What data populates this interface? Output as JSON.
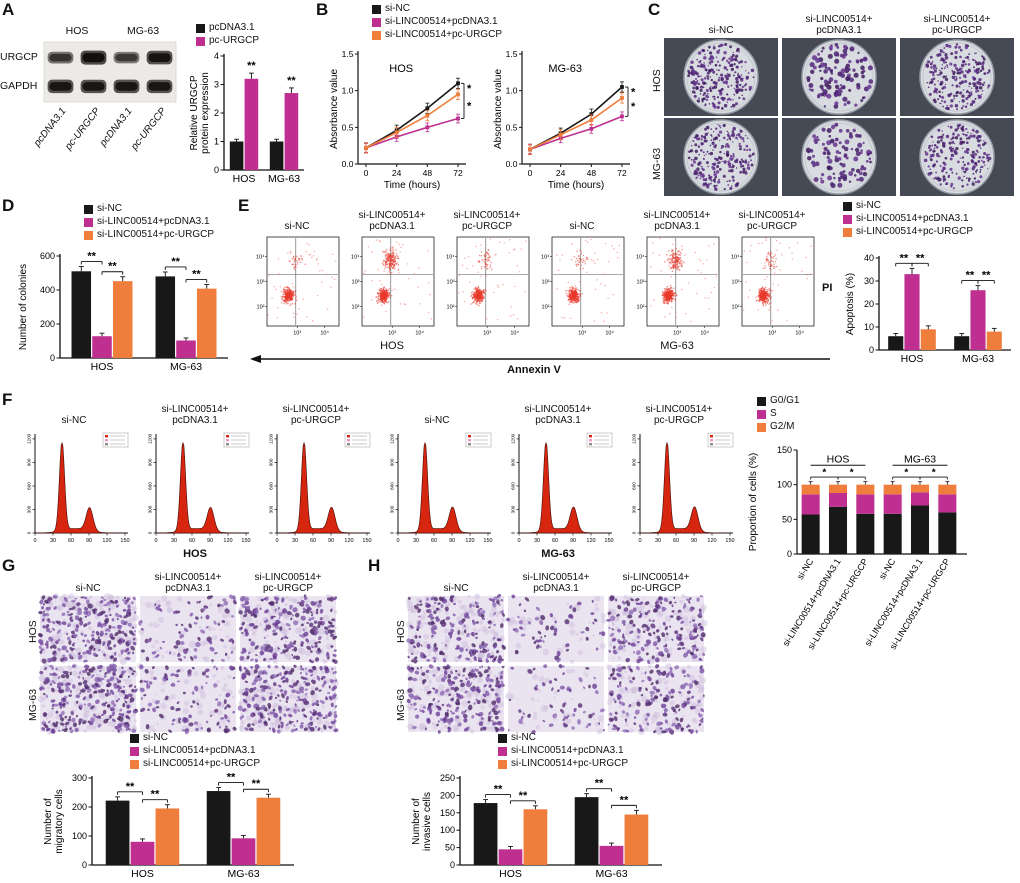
{
  "colors": {
    "black": "#181818",
    "magenta": "#bf2f90",
    "orange": "#ef7d3b"
  },
  "panelA": {
    "label": "A",
    "celllines": [
      "HOS",
      "MG-63"
    ],
    "rows": [
      "URGCP",
      "GAPDH"
    ],
    "lanes": [
      "pcDNA3.1",
      "pc-URGCP",
      "pcDNA3.1",
      "pc-URGCP"
    ],
    "blot": {
      "type": "blot",
      "rows": [
        [
          0.55,
          1.0,
          0.5,
          0.92
        ],
        [
          0.9,
          0.88,
          0.9,
          0.88
        ]
      ]
    },
    "legend": [
      {
        "label": "pcDNA3.1",
        "color": "black"
      },
      {
        "label": "pc-URGCP",
        "color": "magenta"
      }
    ],
    "chart": {
      "type": "bar",
      "ylabel": "Relative URGCP\nprotein expression",
      "categories": [
        "HOS",
        "MG-63"
      ],
      "ylim": [
        0,
        4
      ],
      "yticks": [
        0,
        1,
        2,
        3,
        4
      ],
      "series": [
        {
          "name": "pcDNA3.1",
          "color": "black",
          "values": [
            1.0,
            1.0
          ],
          "err": [
            0.08,
            0.08
          ]
        },
        {
          "name": "pc-URGCP",
          "color": "magenta",
          "values": [
            3.2,
            2.7
          ],
          "err": [
            0.2,
            0.18
          ]
        }
      ],
      "sigs": [
        {
          "cat": 0,
          "s": 1,
          "text": "**"
        },
        {
          "cat": 1,
          "s": 1,
          "text": "**"
        }
      ]
    }
  },
  "panelB": {
    "label": "B",
    "legend": [
      {
        "label": "si-NC",
        "color": "black"
      },
      {
        "label": "si-LINC00514+pcDNA3.1",
        "color": "magenta"
      },
      {
        "label": "si-LINC00514+pc-URGCP",
        "color": "orange"
      }
    ],
    "charts": [
      {
        "type": "line",
        "title": "HOS",
        "xlabel": "Time (hours)",
        "ylabel": "Absorbance value",
        "x": [
          0,
          24,
          48,
          72
        ],
        "ylim": [
          0,
          1.5
        ],
        "yticks": [
          "0.0",
          "0.5",
          "1.0",
          "1.5"
        ],
        "series": [
          {
            "name": "si-NC",
            "color": "black",
            "values": [
              0.22,
              0.46,
              0.76,
              1.1
            ],
            "err": 0.07
          },
          {
            "name": "si-LINC00514+pcDNA3.1",
            "color": "magenta",
            "values": [
              0.22,
              0.37,
              0.5,
              0.62
            ],
            "err": 0.06
          },
          {
            "name": "si-LINC00514+pc-URGCP",
            "color": "orange",
            "values": [
              0.22,
              0.43,
              0.66,
              0.95
            ],
            "err": 0.07
          }
        ],
        "sig": [
          "*",
          "*"
        ]
      },
      {
        "type": "line",
        "title": "MG-63",
        "xlabel": "Time (hours)",
        "ylabel": "Absorbance value",
        "x": [
          0,
          24,
          48,
          72
        ],
        "ylim": [
          0,
          1.5
        ],
        "yticks": [
          "0.0",
          "0.5",
          "1.0",
          "1.5"
        ],
        "series": [
          {
            "name": "si-NC",
            "color": "black",
            "values": [
              0.2,
              0.42,
              0.68,
              1.05
            ],
            "err": 0.07
          },
          {
            "name": "si-LINC00514+pcDNA3.1",
            "color": "magenta",
            "values": [
              0.2,
              0.35,
              0.48,
              0.65
            ],
            "err": 0.06
          },
          {
            "name": "si-LINC00514+pc-URGCP",
            "color": "orange",
            "values": [
              0.2,
              0.4,
              0.6,
              0.9
            ],
            "err": 0.07
          }
        ],
        "sig": [
          "*",
          "*"
        ]
      }
    ]
  },
  "panelC": {
    "label": "C",
    "cols": [
      "si-NC",
      "si-LINC00514+\npcDNA3.1",
      "si-LINC00514+\npc-URGCP"
    ],
    "rows": [
      "HOS",
      "MG-63"
    ],
    "images": [
      {
        "type": "dish",
        "density": 260,
        "seed": 1
      },
      {
        "type": "dish",
        "density": 115,
        "seed": 2
      },
      {
        "type": "dish",
        "density": 235,
        "seed": 3
      },
      {
        "type": "dish",
        "density": 245,
        "seed": 4
      },
      {
        "type": "dish",
        "density": 100,
        "seed": 5
      },
      {
        "type": "dish",
        "density": 215,
        "seed": 6
      }
    ]
  },
  "panelD": {
    "label": "D",
    "legend": [
      {
        "label": "si-NC",
        "color": "black"
      },
      {
        "label": "si-LINC00514+pcDNA3.1",
        "color": "magenta"
      },
      {
        "label": "si-LINC00514+pc-URGCP",
        "color": "orange"
      }
    ],
    "chart": {
      "type": "bar",
      "ylabel": "Number of colonies",
      "categories": [
        "HOS",
        "MG-63"
      ],
      "ylim": [
        0,
        600
      ],
      "yticks": [
        0,
        200,
        400,
        600
      ],
      "series": [
        {
          "name": "si-NC",
          "color": "black",
          "values": [
            510,
            480
          ],
          "err": [
            28,
            26
          ]
        },
        {
          "name": "si-LINC00514+pcDNA3.1",
          "color": "magenta",
          "values": [
            128,
            103
          ],
          "err": [
            18,
            15
          ]
        },
        {
          "name": "si-LINC00514+pc-URGCP",
          "color": "orange",
          "values": [
            452,
            408
          ],
          "err": [
            26,
            24
          ]
        }
      ],
      "sigs": [
        {
          "cat": 0,
          "s1": 0,
          "s2": 1,
          "text": "**"
        },
        {
          "cat": 0,
          "s1": 1,
          "s2": 2,
          "text": "**"
        },
        {
          "cat": 1,
          "s1": 0,
          "s2": 1,
          "text": "**"
        },
        {
          "cat": 1,
          "s1": 1,
          "s2": 2,
          "text": "**"
        }
      ]
    }
  },
  "panelE": {
    "label": "E",
    "titles": [
      "si-NC",
      "si-LINC00514+\npcDNA3.1",
      "si-LINC00514+\npc-URGCP",
      "si-NC",
      "si-LINC00514+\npcDNA3.1",
      "si-LINC00514+\npc-URGCP"
    ],
    "flow_yticks": [
      "10²",
      "10³",
      "10⁴"
    ],
    "flow_xticks": [
      "10³",
      "10⁴"
    ],
    "plots": [
      {
        "type": "flow",
        "apop": 0.06,
        "seed": 11
      },
      {
        "type": "flow",
        "apop": 0.33,
        "seed": 12
      },
      {
        "type": "flow",
        "apop": 0.09,
        "seed": 13
      },
      {
        "type": "flow",
        "apop": 0.06,
        "seed": 14
      },
      {
        "type": "flow",
        "apop": 0.26,
        "seed": 15
      },
      {
        "type": "flow",
        "apop": 0.08,
        "seed": 16
      }
    ],
    "yaxis": "PI",
    "xaxis": "Annexin V",
    "groups": [
      "HOS",
      "MG-63"
    ],
    "legend": [
      {
        "label": "si-NC",
        "color": "black"
      },
      {
        "label": "si-LINC00514+pcDNA3.1",
        "color": "magenta"
      },
      {
        "label": "si-LINC00514+pc-URGCP",
        "color": "orange"
      }
    ],
    "chart": {
      "type": "bar",
      "ylabel": "Apoptosis (%)",
      "categories": [
        "HOS",
        "MG-63"
      ],
      "ylim": [
        0,
        40
      ],
      "yticks": [
        0,
        10,
        20,
        30,
        40
      ],
      "series": [
        {
          "name": "si-NC",
          "color": "black",
          "values": [
            6,
            6
          ],
          "err": [
            1.2,
            1.2
          ]
        },
        {
          "name": "si-LINC00514+pcDNA3.1",
          "color": "magenta",
          "values": [
            33,
            26
          ],
          "err": [
            2.5,
            2
          ]
        },
        {
          "name": "si-LINC00514+pc-URGCP",
          "color": "orange",
          "values": [
            9,
            8
          ],
          "err": [
            1.5,
            1.4
          ]
        }
      ],
      "sigs": [
        {
          "cat": 0,
          "s1": 0,
          "s2": 1,
          "text": "**"
        },
        {
          "cat": 0,
          "s1": 1,
          "s2": 2,
          "text": "**"
        },
        {
          "cat": 1,
          "s1": 0,
          "s2": 1,
          "text": "**"
        },
        {
          "cat": 1,
          "s1": 1,
          "s2": 2,
          "text": "**"
        }
      ]
    }
  },
  "panelF": {
    "label": "F",
    "titles": [
      "si-NC",
      "si-LINC00514+\npcDNA3.1",
      "si-LINC00514+\npc-URGCP",
      "si-NC",
      "si-LINC00514+\npcDNA3.1",
      "si-LINC00514+\npc-URGCP"
    ],
    "hist_xticks": [
      0,
      30,
      60,
      90,
      120,
      150
    ],
    "hist_yticks": [
      "0",
      "300",
      "600",
      "900",
      "1200"
    ],
    "plots": [
      {
        "type": "hist",
        "seed": 21
      },
      {
        "type": "hist",
        "seed": 22
      },
      {
        "type": "hist",
        "seed": 23
      },
      {
        "type": "hist",
        "seed": 24
      },
      {
        "type": "hist",
        "seed": 25
      },
      {
        "type": "hist",
        "seed": 26
      }
    ],
    "groups": [
      "HOS",
      "MG-63"
    ],
    "legend": [
      {
        "label": "G0/G1",
        "color": "black"
      },
      {
        "label": "S",
        "color": "magenta"
      },
      {
        "label": "G2/M",
        "color": "orange"
      }
    ],
    "chart": {
      "type": "stacked",
      "ylabel": "Proportion of cells (%)",
      "ylim": [
        0,
        150
      ],
      "yticks": [
        0,
        50,
        100,
        150
      ],
      "series": [
        "black",
        "magenta",
        "orange"
      ],
      "xlabels": [
        "si-NC",
        "si-LINC00514+pcDNA3.1",
        "si-LINC00514+pc-URGCP",
        "si-NC",
        "si-LINC00514+pcDNA3.1",
        "si-LINC00514+pc-URGCP"
      ],
      "values": [
        [
          57,
          29,
          14
        ],
        [
          68,
          20,
          12
        ],
        [
          58,
          28,
          14
        ],
        [
          58,
          28,
          14
        ],
        [
          70,
          19,
          11
        ],
        [
          60,
          26,
          14
        ]
      ],
      "group_labels": [
        "HOS",
        "MG-63"
      ],
      "sigs": [
        {
          "b1": 0,
          "b2": 1,
          "text": "*"
        },
        {
          "b1": 1,
          "b2": 2,
          "text": "*"
        },
        {
          "b1": 3,
          "b2": 4,
          "text": "*"
        },
        {
          "b1": 4,
          "b2": 5,
          "text": "*"
        }
      ]
    }
  },
  "panelG": {
    "label": "G",
    "cols": [
      "si-NC",
      "si-LINC00514+\npcDNA3.1",
      "si-LINC00514+\npc-URGCP"
    ],
    "rows": [
      "HOS",
      "MG-63"
    ],
    "images": [
      {
        "type": "cells",
        "density": 230,
        "seed": 31
      },
      {
        "type": "cells",
        "density": 85,
        "seed": 32
      },
      {
        "type": "cells",
        "density": 205,
        "seed": 33
      },
      {
        "type": "cells",
        "density": 255,
        "seed": 34
      },
      {
        "type": "cells",
        "density": 95,
        "seed": 35
      },
      {
        "type": "cells",
        "density": 235,
        "seed": 36
      }
    ],
    "legend": [
      {
        "label": "si-NC",
        "color": "black"
      },
      {
        "label": "si-LINC00514+pcDNA3.1",
        "color": "magenta"
      },
      {
        "label": "si-LINC00514+pc-URGCP",
        "color": "orange"
      }
    ],
    "chart": {
      "type": "bar",
      "ylabel": "Number of\nmigratory cells",
      "categories": [
        "HOS",
        "MG-63"
      ],
      "ylim": [
        0,
        300
      ],
      "yticks": [
        0,
        100,
        200,
        300
      ],
      "series": [
        {
          "name": "si-NC",
          "color": "black",
          "values": [
            222,
            255
          ],
          "err": [
            13,
            12
          ]
        },
        {
          "name": "si-LINC00514+pcDNA3.1",
          "color": "magenta",
          "values": [
            80,
            92
          ],
          "err": [
            10,
            10
          ]
        },
        {
          "name": "si-LINC00514+pc-URGCP",
          "color": "orange",
          "values": [
            195,
            232
          ],
          "err": [
            13,
            12
          ]
        }
      ],
      "sigs": [
        {
          "cat": 0,
          "s1": 0,
          "s2": 1,
          "text": "**"
        },
        {
          "cat": 0,
          "s1": 1,
          "s2": 2,
          "text": "**"
        },
        {
          "cat": 1,
          "s1": 0,
          "s2": 1,
          "text": "**"
        },
        {
          "cat": 1,
          "s1": 1,
          "s2": 2,
          "text": "**"
        }
      ]
    }
  },
  "panelH": {
    "label": "H",
    "cols": [
      "si-NC",
      "si-LINC00514+\npcDNA3.1",
      "si-LINC00514+\npc-URGCP"
    ],
    "rows": [
      "HOS",
      "MG-63"
    ],
    "images": [
      {
        "type": "cells",
        "density": 190,
        "seed": 41
      },
      {
        "type": "cells",
        "density": 55,
        "seed": 42
      },
      {
        "type": "cells",
        "density": 170,
        "seed": 43
      },
      {
        "type": "cells",
        "density": 205,
        "seed": 44
      },
      {
        "type": "cells",
        "density": 60,
        "seed": 45
      },
      {
        "type": "cells",
        "density": 160,
        "seed": 46
      }
    ],
    "legend": [
      {
        "label": "si-NC",
        "color": "black"
      },
      {
        "label": "si-LINC00514+pcDNA3.1",
        "color": "magenta"
      },
      {
        "label": "si-LINC00514+pc-URGCP",
        "color": "orange"
      }
    ],
    "chart": {
      "type": "bar",
      "ylabel": "Number of\ninvasive cells",
      "categories": [
        "HOS",
        "MG-63"
      ],
      "ylim": [
        0,
        250
      ],
      "yticks": [
        0,
        50,
        100,
        150,
        200,
        250
      ],
      "series": [
        {
          "name": "si-NC",
          "color": "black",
          "values": [
            178,
            195
          ],
          "err": [
            10,
            10
          ]
        },
        {
          "name": "si-LINC00514+pcDNA3.1",
          "color": "magenta",
          "values": [
            45,
            55
          ],
          "err": [
            8,
            8
          ]
        },
        {
          "name": "si-LINC00514+pc-URGCP",
          "color": "orange",
          "values": [
            160,
            145
          ],
          "err": [
            10,
            12
          ]
        }
      ],
      "sigs": [
        {
          "cat": 0,
          "s1": 0,
          "s2": 1,
          "text": "**"
        },
        {
          "cat": 0,
          "s1": 1,
          "s2": 2,
          "text": "**"
        },
        {
          "cat": 1,
          "s1": 0,
          "s2": 1,
          "text": "**"
        },
        {
          "cat": 1,
          "s1": 1,
          "s2": 2,
          "text": "**"
        }
      ]
    }
  }
}
